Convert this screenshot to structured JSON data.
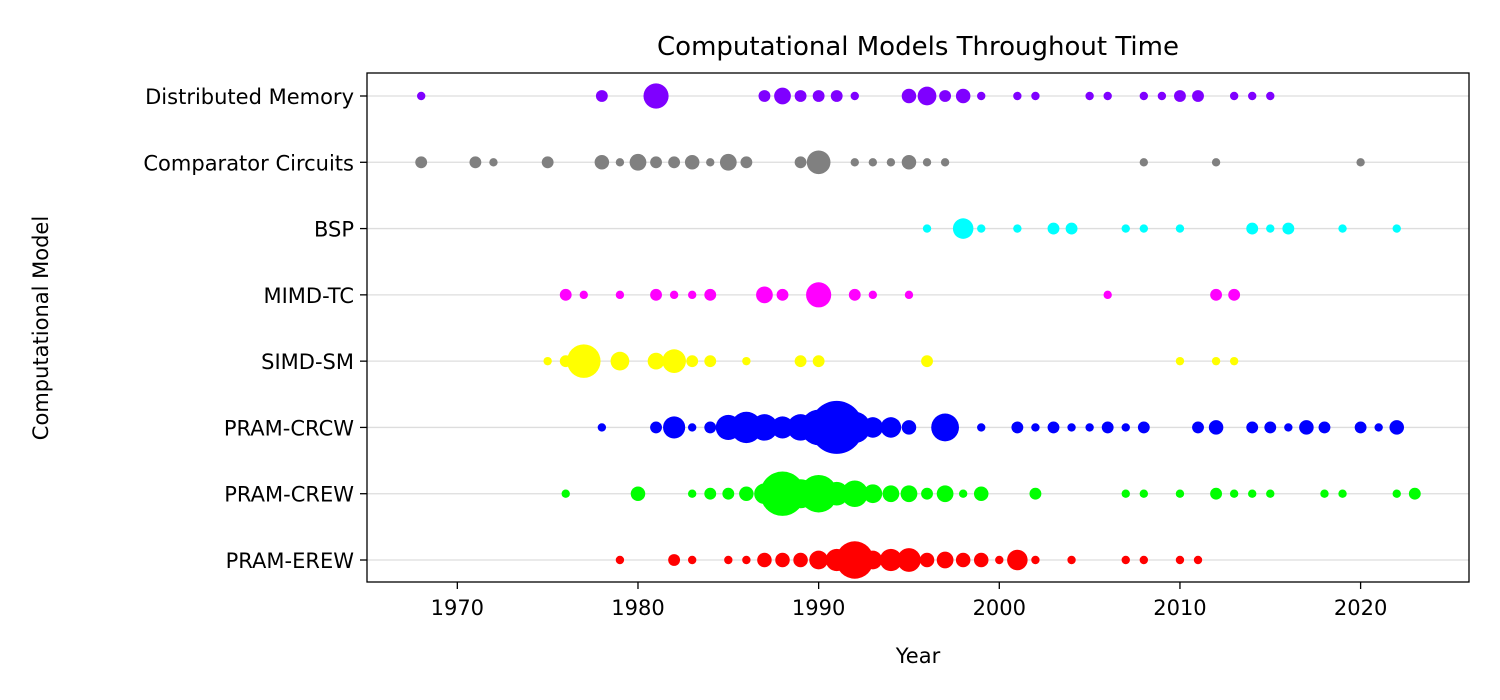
{
  "chart_data": {
    "type": "scatter",
    "title": "Computational Models Throughout Time",
    "xlabel": "Year",
    "ylabel": "Computational Model",
    "xlim": [
      1965,
      2026
    ],
    "xticks": [
      1970,
      1980,
      1990,
      2000,
      2010,
      2020
    ],
    "grid": "horizontal",
    "categories": [
      "PRAM-EREW",
      "PRAM-CREW",
      "PRAM-CRCW",
      "SIMD-SM",
      "MIMD-TC",
      "BSP",
      "Comparator Circuits",
      "Distributed Memory"
    ],
    "series": [
      {
        "category": "Distributed Memory",
        "color": "#7f00ff",
        "points": [
          [
            1968,
            1
          ],
          [
            1978,
            2
          ],
          [
            1981,
            9
          ],
          [
            1987,
            2
          ],
          [
            1988,
            4
          ],
          [
            1989,
            2
          ],
          [
            1990,
            2
          ],
          [
            1991,
            2
          ],
          [
            1992,
            1
          ],
          [
            1995,
            3
          ],
          [
            1996,
            5
          ],
          [
            1997,
            2
          ],
          [
            1998,
            3
          ],
          [
            1999,
            1
          ],
          [
            2001,
            1
          ],
          [
            2002,
            1
          ],
          [
            2005,
            1
          ],
          [
            2006,
            1
          ],
          [
            2008,
            1
          ],
          [
            2009,
            1
          ],
          [
            2010,
            2
          ],
          [
            2011,
            2
          ],
          [
            2013,
            1
          ],
          [
            2014,
            1
          ],
          [
            2015,
            1
          ]
        ]
      },
      {
        "category": "Comparator Circuits",
        "color": "#808080",
        "points": [
          [
            1968,
            2
          ],
          [
            1971,
            2
          ],
          [
            1972,
            1
          ],
          [
            1975,
            2
          ],
          [
            1978,
            3
          ],
          [
            1979,
            1
          ],
          [
            1980,
            4
          ],
          [
            1981,
            2
          ],
          [
            1982,
            2
          ],
          [
            1983,
            3
          ],
          [
            1984,
            1
          ],
          [
            1985,
            4
          ],
          [
            1986,
            2
          ],
          [
            1989,
            2
          ],
          [
            1990,
            8
          ],
          [
            1992,
            1
          ],
          [
            1993,
            1
          ],
          [
            1994,
            1
          ],
          [
            1995,
            3
          ],
          [
            1996,
            1
          ],
          [
            1997,
            1
          ],
          [
            2008,
            1
          ],
          [
            2012,
            1
          ],
          [
            2020,
            1
          ]
        ]
      },
      {
        "category": "BSP",
        "color": "#00ffff",
        "points": [
          [
            1996,
            1
          ],
          [
            1998,
            6
          ],
          [
            1999,
            1
          ],
          [
            2001,
            1
          ],
          [
            2003,
            2
          ],
          [
            2004,
            2
          ],
          [
            2007,
            1
          ],
          [
            2008,
            1
          ],
          [
            2010,
            1
          ],
          [
            2014,
            2
          ],
          [
            2015,
            1
          ],
          [
            2016,
            2
          ],
          [
            2019,
            1
          ],
          [
            2022,
            1
          ]
        ]
      },
      {
        "category": "MIMD-TC",
        "color": "#ff00ff",
        "points": [
          [
            1976,
            2
          ],
          [
            1977,
            1
          ],
          [
            1979,
            1
          ],
          [
            1981,
            2
          ],
          [
            1982,
            1
          ],
          [
            1983,
            1
          ],
          [
            1984,
            2
          ],
          [
            1987,
            4
          ],
          [
            1988,
            2
          ],
          [
            1990,
            9
          ],
          [
            1992,
            2
          ],
          [
            1993,
            1
          ],
          [
            1995,
            1
          ],
          [
            2006,
            1
          ],
          [
            2012,
            2
          ],
          [
            2013,
            2
          ]
        ]
      },
      {
        "category": "SIMD-SM",
        "color": "#ffff00",
        "points": [
          [
            1975,
            1
          ],
          [
            1976,
            2
          ],
          [
            1977,
            16
          ],
          [
            1979,
            5
          ],
          [
            1981,
            4
          ],
          [
            1982,
            8
          ],
          [
            1983,
            2
          ],
          [
            1984,
            2
          ],
          [
            1986,
            1
          ],
          [
            1989,
            2
          ],
          [
            1990,
            2
          ],
          [
            1996,
            2
          ],
          [
            2010,
            1
          ],
          [
            2012,
            1
          ],
          [
            2013,
            1
          ]
        ]
      },
      {
        "category": "PRAM-CRCW",
        "color": "#0000ff",
        "points": [
          [
            1978,
            1
          ],
          [
            1981,
            2
          ],
          [
            1982,
            7
          ],
          [
            1983,
            1
          ],
          [
            1984,
            2
          ],
          [
            1985,
            9
          ],
          [
            1986,
            14
          ],
          [
            1987,
            10
          ],
          [
            1988,
            7
          ],
          [
            1989,
            10
          ],
          [
            1990,
            18
          ],
          [
            1991,
            40
          ],
          [
            1992,
            14
          ],
          [
            1993,
            6
          ],
          [
            1994,
            6
          ],
          [
            1995,
            3
          ],
          [
            1997,
            11
          ],
          [
            1999,
            1
          ],
          [
            2001,
            2
          ],
          [
            2002,
            1
          ],
          [
            2003,
            2
          ],
          [
            2004,
            1
          ],
          [
            2005,
            1
          ],
          [
            2006,
            2
          ],
          [
            2007,
            1
          ],
          [
            2008,
            2
          ],
          [
            2011,
            2
          ],
          [
            2012,
            3
          ],
          [
            2014,
            2
          ],
          [
            2015,
            2
          ],
          [
            2016,
            1
          ],
          [
            2017,
            3
          ],
          [
            2018,
            2
          ],
          [
            2020,
            2
          ],
          [
            2021,
            1
          ],
          [
            2022,
            3
          ]
        ]
      },
      {
        "category": "PRAM-CREW",
        "color": "#00ff00",
        "points": [
          [
            1976,
            1
          ],
          [
            1980,
            3
          ],
          [
            1983,
            1
          ],
          [
            1984,
            2
          ],
          [
            1985,
            2
          ],
          [
            1986,
            3
          ],
          [
            1987,
            6
          ],
          [
            1988,
            28
          ],
          [
            1989,
            12
          ],
          [
            1990,
            20
          ],
          [
            1991,
            8
          ],
          [
            1992,
            10
          ],
          [
            1993,
            5
          ],
          [
            1994,
            4
          ],
          [
            1995,
            4
          ],
          [
            1996,
            2
          ],
          [
            1997,
            4
          ],
          [
            1998,
            1
          ],
          [
            1999,
            3
          ],
          [
            2002,
            2
          ],
          [
            2007,
            1
          ],
          [
            2008,
            1
          ],
          [
            2010,
            1
          ],
          [
            2012,
            2
          ],
          [
            2013,
            1
          ],
          [
            2014,
            1
          ],
          [
            2015,
            1
          ],
          [
            2018,
            1
          ],
          [
            2019,
            1
          ],
          [
            2022,
            1
          ],
          [
            2023,
            2
          ]
        ]
      },
      {
        "category": "PRAM-EREW",
        "color": "#ff0000",
        "points": [
          [
            1979,
            1
          ],
          [
            1982,
            2
          ],
          [
            1983,
            1
          ],
          [
            1985,
            1
          ],
          [
            1986,
            1
          ],
          [
            1987,
            3
          ],
          [
            1988,
            3
          ],
          [
            1989,
            3
          ],
          [
            1990,
            5
          ],
          [
            1991,
            7
          ],
          [
            1992,
            20
          ],
          [
            1993,
            5
          ],
          [
            1994,
            7
          ],
          [
            1995,
            8
          ],
          [
            1996,
            3
          ],
          [
            1997,
            4
          ],
          [
            1998,
            3
          ],
          [
            1999,
            3
          ],
          [
            2000,
            1
          ],
          [
            2001,
            6
          ],
          [
            2002,
            1
          ],
          [
            2004,
            1
          ],
          [
            2007,
            1
          ],
          [
            2008,
            1
          ],
          [
            2010,
            1
          ],
          [
            2011,
            1
          ]
        ]
      }
    ]
  }
}
